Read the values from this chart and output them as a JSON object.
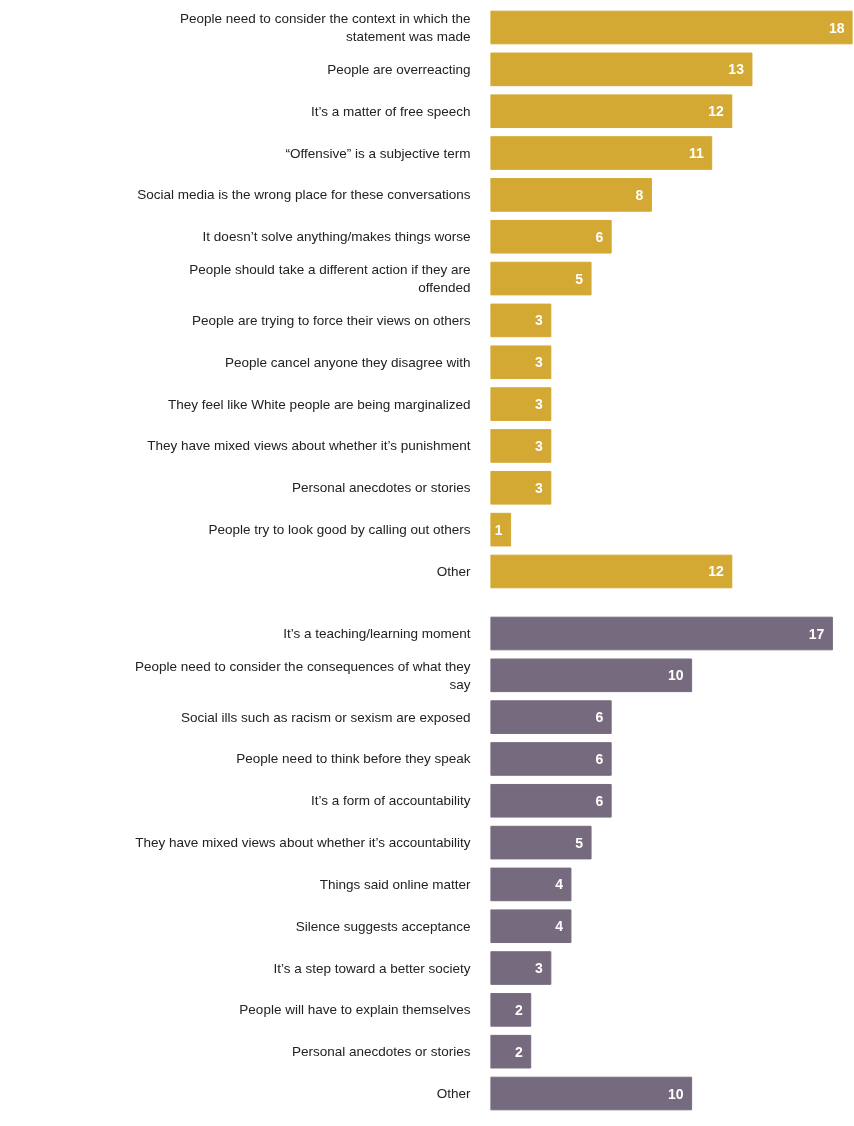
{
  "chart_data": [
    {
      "type": "bar",
      "orientation": "horizontal",
      "color": "#d3a933",
      "data_labels": true,
      "categories": [
        "People need to consider the context in which the statement was made",
        "People are overreacting",
        "It’s a matter of free speech",
        "“Offensive” is a subjective term",
        "Social media is the wrong place for these conversations",
        "It doesn’t solve anything/makes things worse",
        "People should take a different action if they are offended",
        "People are trying to force their views on others",
        "People cancel anyone they disagree with",
        "They feel like White people are being marginalized",
        "They have mixed views about whether it’s punishment",
        "Personal anecdotes or stories",
        "People try to look good by calling out others",
        "Other"
      ],
      "values": [
        18,
        13,
        12,
        11,
        8,
        6,
        5,
        3,
        3,
        3,
        3,
        3,
        1,
        12
      ]
    },
    {
      "type": "bar",
      "orientation": "horizontal",
      "color": "#766b7e",
      "data_labels": true,
      "categories": [
        "It’s a teaching/learning moment",
        "People need to consider the consequences of what they say",
        "Social ills such as racism or sexism are exposed",
        "People need to think before they speak",
        "It’s a form of accountability",
        "They have mixed views about whether it’s accountability",
        "Things said online matter",
        "Silence suggests acceptance",
        "It’s a step toward a better society",
        "People will have to explain themselves",
        "Personal anecdotes or stories",
        "Other"
      ],
      "values": [
        17,
        10,
        6,
        6,
        6,
        5,
        4,
        4,
        3,
        2,
        2,
        10
      ]
    }
  ]
}
